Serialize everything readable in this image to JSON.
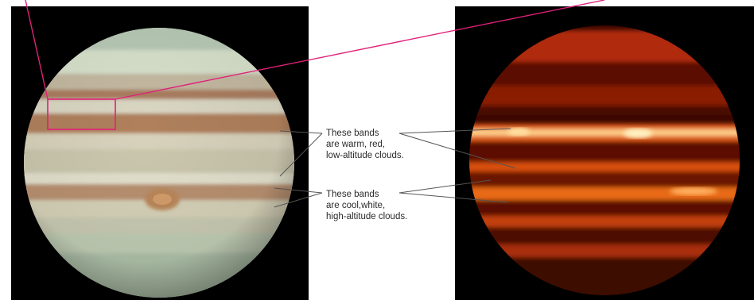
{
  "captions": {
    "warm": [
      "These bands",
      "are warm, red,",
      "low-altitude clouds."
    ],
    "cool": [
      "These bands",
      "are cool,white,",
      "high-altitude clouds."
    ]
  },
  "colors": {
    "pointer_line": "#e0207a",
    "callout_line": "#555555",
    "background": "#ffffff",
    "panel_background": "#000000"
  },
  "images": {
    "left": "visible-light-jupiter",
    "right": "infrared-jupiter"
  }
}
